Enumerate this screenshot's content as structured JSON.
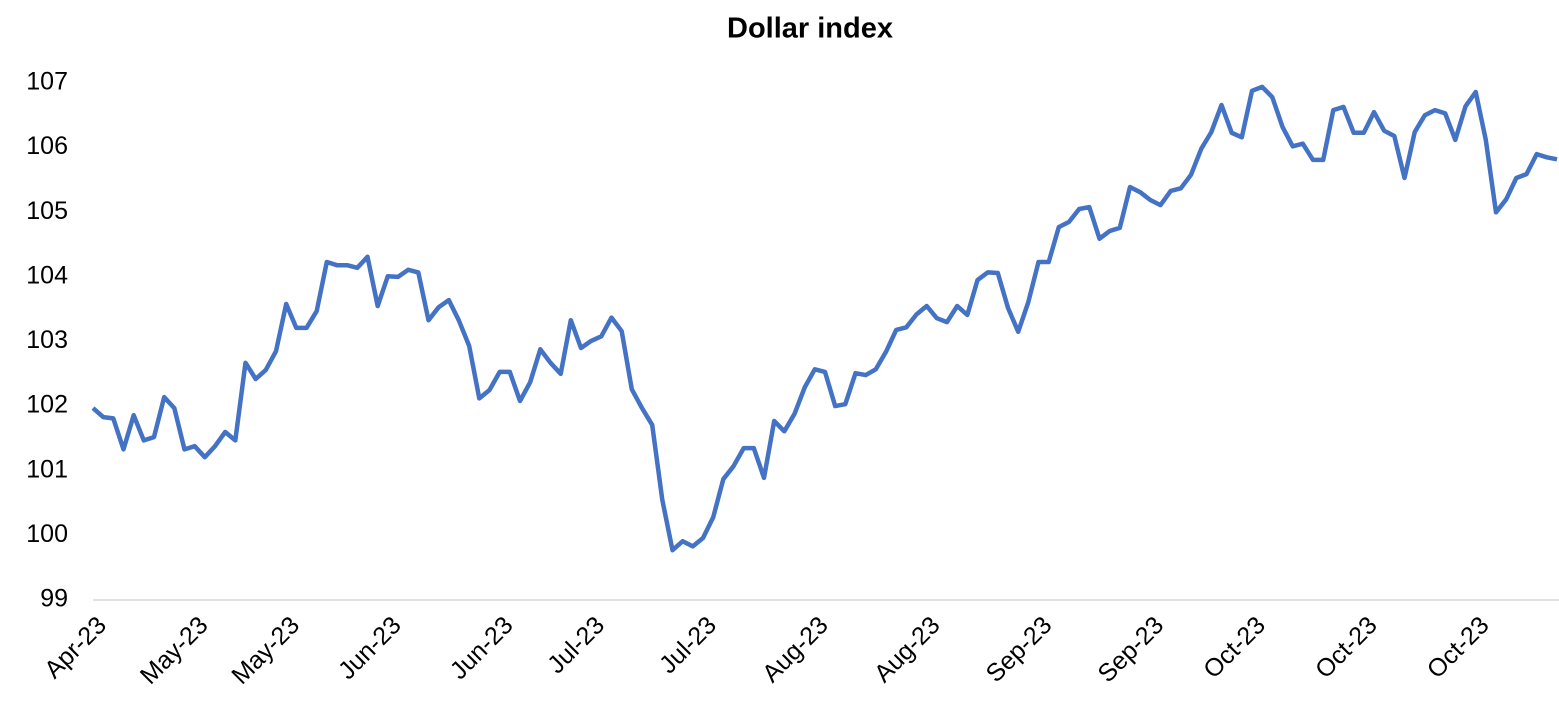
{
  "chart_data": {
    "type": "line",
    "title": "Dollar index",
    "categories": [
      "Apr-23",
      null,
      null,
      null,
      null,
      null,
      null,
      null,
      null,
      null,
      "May-23",
      null,
      null,
      null,
      null,
      null,
      null,
      null,
      null,
      "May-23",
      null,
      null,
      null,
      null,
      null,
      null,
      null,
      null,
      null,
      "Jun-23",
      null,
      null,
      null,
      null,
      null,
      null,
      null,
      null,
      null,
      null,
      "Jun-23",
      null,
      null,
      null,
      null,
      null,
      null,
      null,
      null,
      "Jul-23",
      null,
      null,
      null,
      null,
      null,
      null,
      null,
      null,
      null,
      null,
      "Jul-23",
      null,
      null,
      null,
      null,
      null,
      null,
      null,
      null,
      null,
      null,
      "Aug-23",
      null,
      null,
      null,
      null,
      null,
      null,
      null,
      null,
      null,
      null,
      "Aug-23",
      null,
      null,
      null,
      null,
      null,
      null,
      null,
      null,
      null,
      null,
      "Sep-23",
      null,
      null,
      null,
      null,
      null,
      null,
      null,
      null,
      null,
      null,
      "Sep-23",
      null,
      null,
      null,
      null,
      null,
      null,
      null,
      null,
      null,
      "Oct-23",
      null,
      null,
      null,
      null,
      null,
      null,
      null,
      null,
      null,
      null,
      "Oct-23",
      null,
      null,
      null,
      null,
      null,
      null,
      null,
      null,
      null,
      null,
      "Oct-23",
      null,
      null,
      null,
      null,
      null,
      null,
      null,
      null
    ],
    "series": [
      {
        "name": "Dollar index",
        "color": "#4472c4",
        "values": [
          101.97,
          101.83,
          101.81,
          101.33,
          101.86,
          101.47,
          101.52,
          102.14,
          101.97,
          101.33,
          101.38,
          101.21,
          101.38,
          101.6,
          101.47,
          102.67,
          102.42,
          102.56,
          102.85,
          103.58,
          103.21,
          103.21,
          103.47,
          104.23,
          104.18,
          104.18,
          104.14,
          104.31,
          103.55,
          104.01,
          104.0,
          104.11,
          104.07,
          103.33,
          103.53,
          103.64,
          103.32,
          102.93,
          102.12,
          102.25,
          102.53,
          102.53,
          102.08,
          102.37,
          102.88,
          102.67,
          102.5,
          103.33,
          102.9,
          103.01,
          103.08,
          103.37,
          103.16,
          102.26,
          101.97,
          101.71,
          100.55,
          99.77,
          99.91,
          99.83,
          99.96,
          100.28,
          100.87,
          101.07,
          101.35,
          101.35,
          100.89,
          101.77,
          101.61,
          101.88,
          102.29,
          102.57,
          102.53,
          102.0,
          102.03,
          102.51,
          102.48,
          102.57,
          102.84,
          103.18,
          103.22,
          103.42,
          103.55,
          103.36,
          103.3,
          103.55,
          103.41,
          103.95,
          104.07,
          104.06,
          103.52,
          103.15,
          103.61,
          104.23,
          104.23,
          104.77,
          104.85,
          105.05,
          105.08,
          104.59,
          104.71,
          104.76,
          105.39,
          105.31,
          105.19,
          105.11,
          105.33,
          105.37,
          105.58,
          105.98,
          106.24,
          106.66,
          106.23,
          106.16,
          106.88,
          106.94,
          106.78,
          106.32,
          106.02,
          106.06,
          105.81,
          105.81,
          106.58,
          106.63,
          106.23,
          106.23,
          106.55,
          106.26,
          106.18,
          105.53,
          106.24,
          106.5,
          106.58,
          106.53,
          106.12,
          106.64,
          106.86,
          106.12,
          105.0,
          105.2,
          105.53,
          105.59,
          105.9,
          105.85,
          105.82
        ]
      }
    ],
    "ylim": [
      99,
      107
    ],
    "yticks": [
      99,
      100,
      101,
      102,
      103,
      104,
      105,
      106,
      107
    ],
    "grid": false
  }
}
